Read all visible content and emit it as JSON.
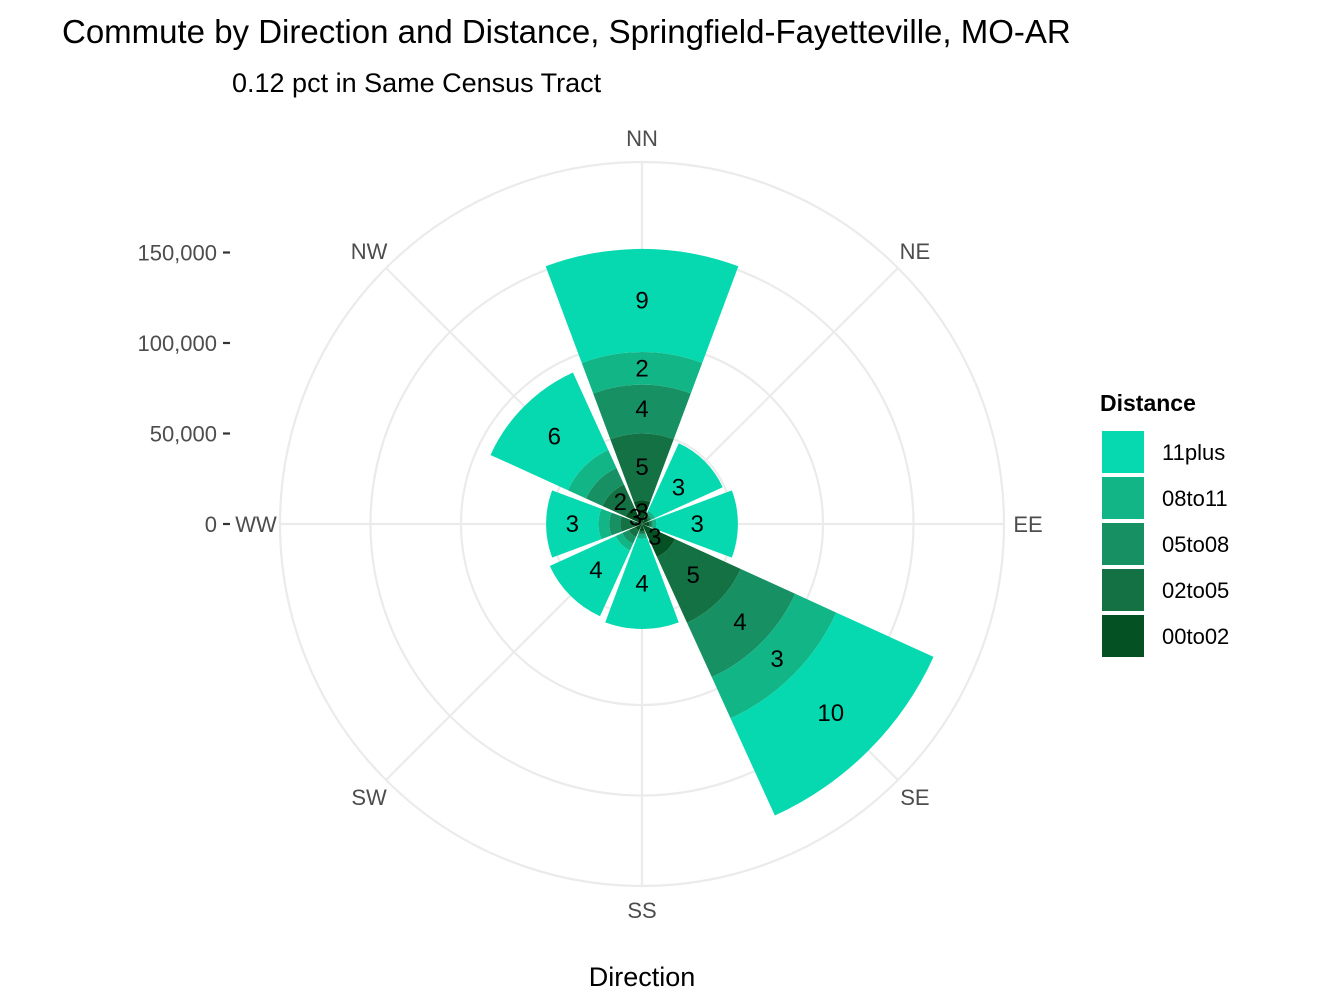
{
  "chart_data": {
    "type": "polar-stacked-bar",
    "title": "Commute by Direction and Distance, Springfield-Fayetteville, MO-AR",
    "subtitle": "0.12 pct in Same Census Tract",
    "xlabel": "Direction",
    "directions": [
      "NN",
      "NE",
      "EE",
      "SE",
      "SS",
      "SW",
      "WW",
      "NW"
    ],
    "radial_ticks": [
      {
        "value": 0,
        "label": "0"
      },
      {
        "value": 50000,
        "label": "50,000"
      },
      {
        "value": 100000,
        "label": "100,000"
      },
      {
        "value": 150000,
        "label": "150,000"
      }
    ],
    "rmax": 200000,
    "legend": {
      "title": "Distance",
      "entries": [
        {
          "key": "11plus",
          "label": "11plus",
          "color": "#06D9B0"
        },
        {
          "key": "08to11",
          "label": "08to11",
          "color": "#12B586"
        },
        {
          "key": "05to08",
          "label": "05to08",
          "color": "#179063"
        },
        {
          "key": "02to05",
          "label": "02to05",
          "color": "#137143"
        },
        {
          "key": "00to02",
          "label": "00to02",
          "color": "#045123"
        }
      ]
    },
    "stack_order": [
      "00to02",
      "02to05",
      "05to08",
      "08to11",
      "11plus"
    ],
    "bars": [
      {
        "direction": "NN",
        "values": {
          "00to02": 13000,
          "02to05": 50000,
          "05to08": 77000,
          "08to11": 95000,
          "11plus": 152000
        },
        "labels": {
          "00to02": "3",
          "02to05": "5",
          "05to08": "4",
          "08to11": "2",
          "11plus": "9"
        }
      },
      {
        "direction": "NE",
        "values": {
          "00to02": 4000,
          "02to05": 5000,
          "05to08": 6000,
          "08to11": 8000,
          "11plus": 49000
        },
        "labels": {
          "11plus": "3"
        }
      },
      {
        "direction": "EE",
        "values": {
          "00to02": 4000,
          "02to05": 5000,
          "05to08": 6000,
          "08to11": 8000,
          "11plus": 53000
        },
        "labels": {
          "11plus": "3"
        }
      },
      {
        "direction": "SE",
        "values": {
          "00to02": 20000,
          "02to05": 60000,
          "05to08": 93000,
          "08to11": 118000,
          "11plus": 177000
        },
        "labels": {
          "00to02": "3",
          "02to05": "5",
          "05to08": "4",
          "08to11": "3",
          "11plus": "10"
        }
      },
      {
        "direction": "SS",
        "values": {
          "00to02": 4000,
          "02to05": 5000,
          "05to08": 6000,
          "08to11": 8000,
          "11plus": 58000
        },
        "labels": {
          "11plus": "4"
        }
      },
      {
        "direction": "SW",
        "values": {
          "00to02": 4000,
          "02to05": 8000,
          "05to08": 12000,
          "08to11": 16000,
          "11plus": 56000
        },
        "labels": {
          "11plus": "4"
        }
      },
      {
        "direction": "WW",
        "values": {
          "00to02": 4000,
          "02to05": 12000,
          "05to08": 18000,
          "08to11": 24000,
          "11plus": 53000
        },
        "labels": {
          "11plus": "3"
        }
      },
      {
        "direction": "NW",
        "values": {
          "00to02": 10000,
          "02to05": 24000,
          "05to08": 34000,
          "08to11": 45000,
          "11plus": 92000
        },
        "labels": {
          "00to02": "3",
          "02to05": "2",
          "11plus": "6"
        }
      }
    ]
  }
}
